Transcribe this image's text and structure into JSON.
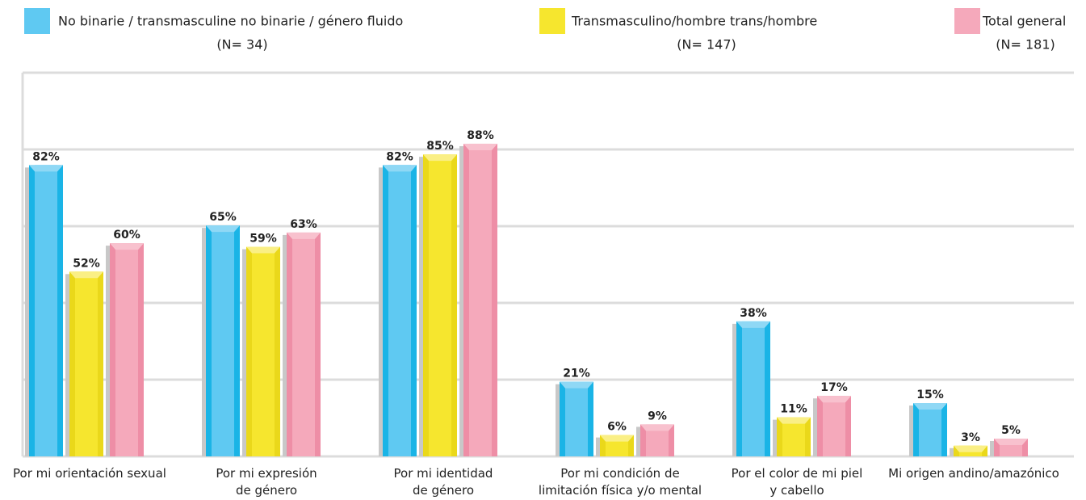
{
  "chart_data": {
    "type": "bar",
    "categories": [
      "Por mi orientación sexual",
      "Por mi expresión\nde género",
      "Por mi identidad\nde género",
      "Por mi condición de\nlimitación física y/o mental",
      "Por el color de mi piel\ny cabello",
      "Mi origen andino/amazónico"
    ],
    "series": [
      {
        "name": "No binarie / transmasculine no binarie / género fluido",
        "count_label": "(N= 34)",
        "color": "#1ab4e6",
        "face": "#5fc9f2",
        "cap": "#8fd8f5",
        "values": [
          82,
          65,
          82,
          21,
          38,
          15
        ],
        "value_labels": [
          "82%",
          "65%",
          "82%",
          "21%",
          "38%",
          "15%"
        ]
      },
      {
        "name": "Transmasculino/hombre trans/hombre",
        "count_label": "(N= 147)",
        "color": "#ead81a",
        "face": "#f6e62e",
        "cap": "#faef85",
        "values": [
          52,
          59,
          85,
          6,
          11,
          3
        ],
        "value_labels": [
          "52%",
          "59%",
          "85%",
          "6%",
          "11%",
          "3%"
        ]
      },
      {
        "name": "Total general",
        "count_label": "(N= 181)",
        "color": "#ee8ea6",
        "face": "#f5a9bb",
        "cap": "#f8c1ce",
        "values": [
          60,
          63,
          88,
          9,
          17,
          5
        ],
        "value_labels": [
          "60%",
          "63%",
          "88%",
          "9%",
          "17%",
          "5%"
        ]
      }
    ],
    "ylim": [
      0,
      108
    ],
    "yticks": [
      0,
      21.6,
      43.2,
      64.8,
      86.4,
      108
    ],
    "grid": true
  }
}
